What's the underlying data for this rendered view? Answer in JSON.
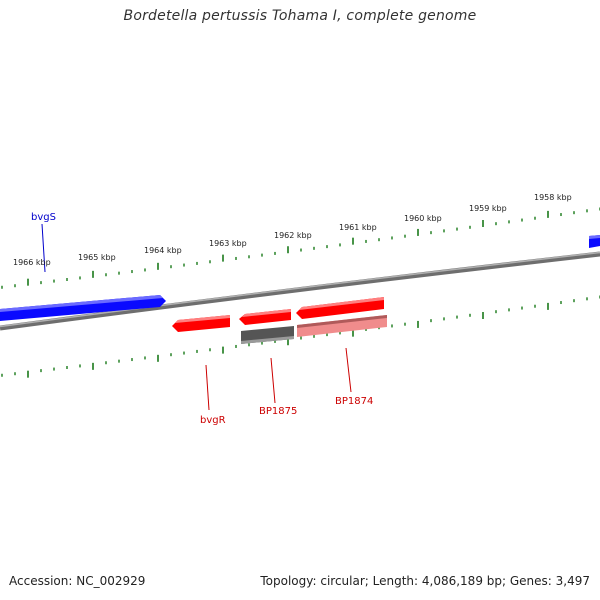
{
  "title": "Bordetella pertussis Tohama I, complete genome",
  "footer": {
    "accession": "Accession: NC_002929",
    "summary": "Topology: circular; Length: 4,086,189 bp; Genes: 3,497"
  },
  "colors": {
    "forward_gene": "#0a0aff",
    "reverse_gene": "#ff0000",
    "reverse_gene_light": "#f08c8c",
    "reverse_gene_dark": "#555555",
    "backbone": "#808080",
    "ticks": "#1a7a1a",
    "forward_label": "#0000cc",
    "reverse_label": "#cc0000"
  },
  "axis": {
    "unit": "kbp",
    "major_ticks": [
      {
        "kbp": 1966,
        "label": "1966 kbp"
      },
      {
        "kbp": 1965,
        "label": "1965 kbp"
      },
      {
        "kbp": 1964,
        "label": "1964 kbp"
      },
      {
        "kbp": 1963,
        "label": "1963 kbp"
      },
      {
        "kbp": 1962,
        "label": "1962 kbp"
      },
      {
        "kbp": 1961,
        "label": "1961 kbp"
      },
      {
        "kbp": 1960,
        "label": "1960 kbp"
      },
      {
        "kbp": 1959,
        "label": "1959 kbp"
      },
      {
        "kbp": 1958,
        "label": "1958 kbp"
      }
    ]
  },
  "genes": [
    {
      "name": "bvgS",
      "strand": "forward"
    },
    {
      "name": "bvgR",
      "strand": "reverse"
    },
    {
      "name": "BP1875",
      "strand": "reverse"
    },
    {
      "name": "BP1874",
      "strand": "reverse"
    }
  ]
}
